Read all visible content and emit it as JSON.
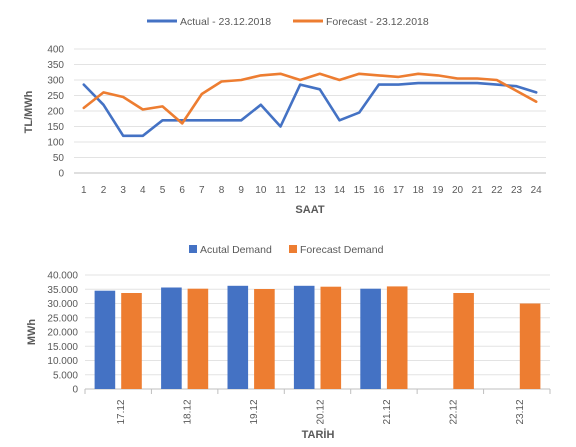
{
  "chart_data": [
    {
      "type": "line",
      "xlabel": "SAAT",
      "ylabel": "TL/MWh",
      "ylim": [
        0,
        400
      ],
      "yticks": [
        "0",
        "50",
        "100",
        "150",
        "200",
        "250",
        "300",
        "350",
        "400"
      ],
      "grid": "horizontal",
      "legend": "top",
      "x": [
        "1",
        "2",
        "3",
        "4",
        "5",
        "6",
        "7",
        "8",
        "9",
        "10",
        "11",
        "12",
        "13",
        "14",
        "15",
        "16",
        "17",
        "18",
        "19",
        "20",
        "21",
        "22",
        "23",
        "24"
      ],
      "series": [
        {
          "name": "Actual - 23.12.2018",
          "color": "#4472c4",
          "values": [
            285,
            220,
            120,
            120,
            170,
            170,
            170,
            170,
            170,
            220,
            150,
            285,
            270,
            170,
            195,
            285,
            285,
            290,
            290,
            290,
            290,
            285,
            280,
            260
          ]
        },
        {
          "name": "Forecast - 23.12.2018",
          "color": "#ed7d31",
          "values": [
            210,
            260,
            245,
            205,
            215,
            160,
            255,
            295,
            300,
            315,
            320,
            300,
            320,
            300,
            320,
            315,
            310,
            320,
            315,
            305,
            305,
            300,
            265,
            230
          ]
        }
      ]
    },
    {
      "type": "bar",
      "xlabel": "TARİH",
      "ylabel": "MWh",
      "ylim": [
        0,
        40000
      ],
      "yticks": [
        "0",
        "5.000",
        "10.000",
        "15.000",
        "20.000",
        "25.000",
        "30.000",
        "35.000",
        "40.000"
      ],
      "grid": "horizontal",
      "legend": "top",
      "categories": [
        "17.12",
        "18.12",
        "19.12",
        "20.12",
        "21.12",
        "22.12",
        "23.12"
      ],
      "series": [
        {
          "name": "Acutal Demand",
          "color": "#4472c4",
          "values": [
            34500,
            35600,
            36200,
            36200,
            35200,
            null,
            null
          ]
        },
        {
          "name": "Forecast Demand",
          "color": "#ed7d31",
          "values": [
            33700,
            35200,
            35100,
            35900,
            36000,
            33700,
            30000
          ]
        }
      ]
    }
  ]
}
